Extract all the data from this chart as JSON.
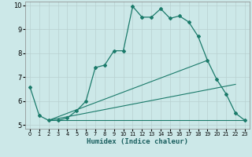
{
  "xlabel": "Humidex (Indice chaleur)",
  "bg_color": "#cce8e8",
  "grid_color": "#b8d0d0",
  "line_color": "#1a7a6a",
  "xlim": [
    -0.5,
    23.5
  ],
  "ylim": [
    4.85,
    10.15
  ],
  "line1_x": [
    0,
    1,
    2,
    3,
    4,
    5,
    6,
    7,
    8,
    9,
    10,
    11,
    12,
    13,
    14,
    15,
    16,
    17,
    18,
    19,
    20,
    21,
    22,
    23
  ],
  "line1_y": [
    6.6,
    5.4,
    5.2,
    5.2,
    5.3,
    5.6,
    6.0,
    7.4,
    7.5,
    8.1,
    8.1,
    9.95,
    9.5,
    9.5,
    9.85,
    9.45,
    9.55,
    9.3,
    8.7,
    7.7,
    6.9,
    6.3,
    5.5,
    5.2
  ],
  "line2_x": [
    2,
    23
  ],
  "line2_y": [
    5.2,
    5.2
  ],
  "line3_x": [
    2,
    19
  ],
  "line3_y": [
    5.2,
    7.7
  ],
  "line4_x": [
    2,
    22
  ],
  "line4_y": [
    5.2,
    6.7
  ],
  "yticks": [
    5,
    6,
    7,
    8,
    9,
    10
  ],
  "xticks": [
    0,
    1,
    2,
    3,
    4,
    5,
    6,
    7,
    8,
    9,
    10,
    11,
    12,
    13,
    14,
    15,
    16,
    17,
    18,
    19,
    20,
    21,
    22,
    23
  ]
}
